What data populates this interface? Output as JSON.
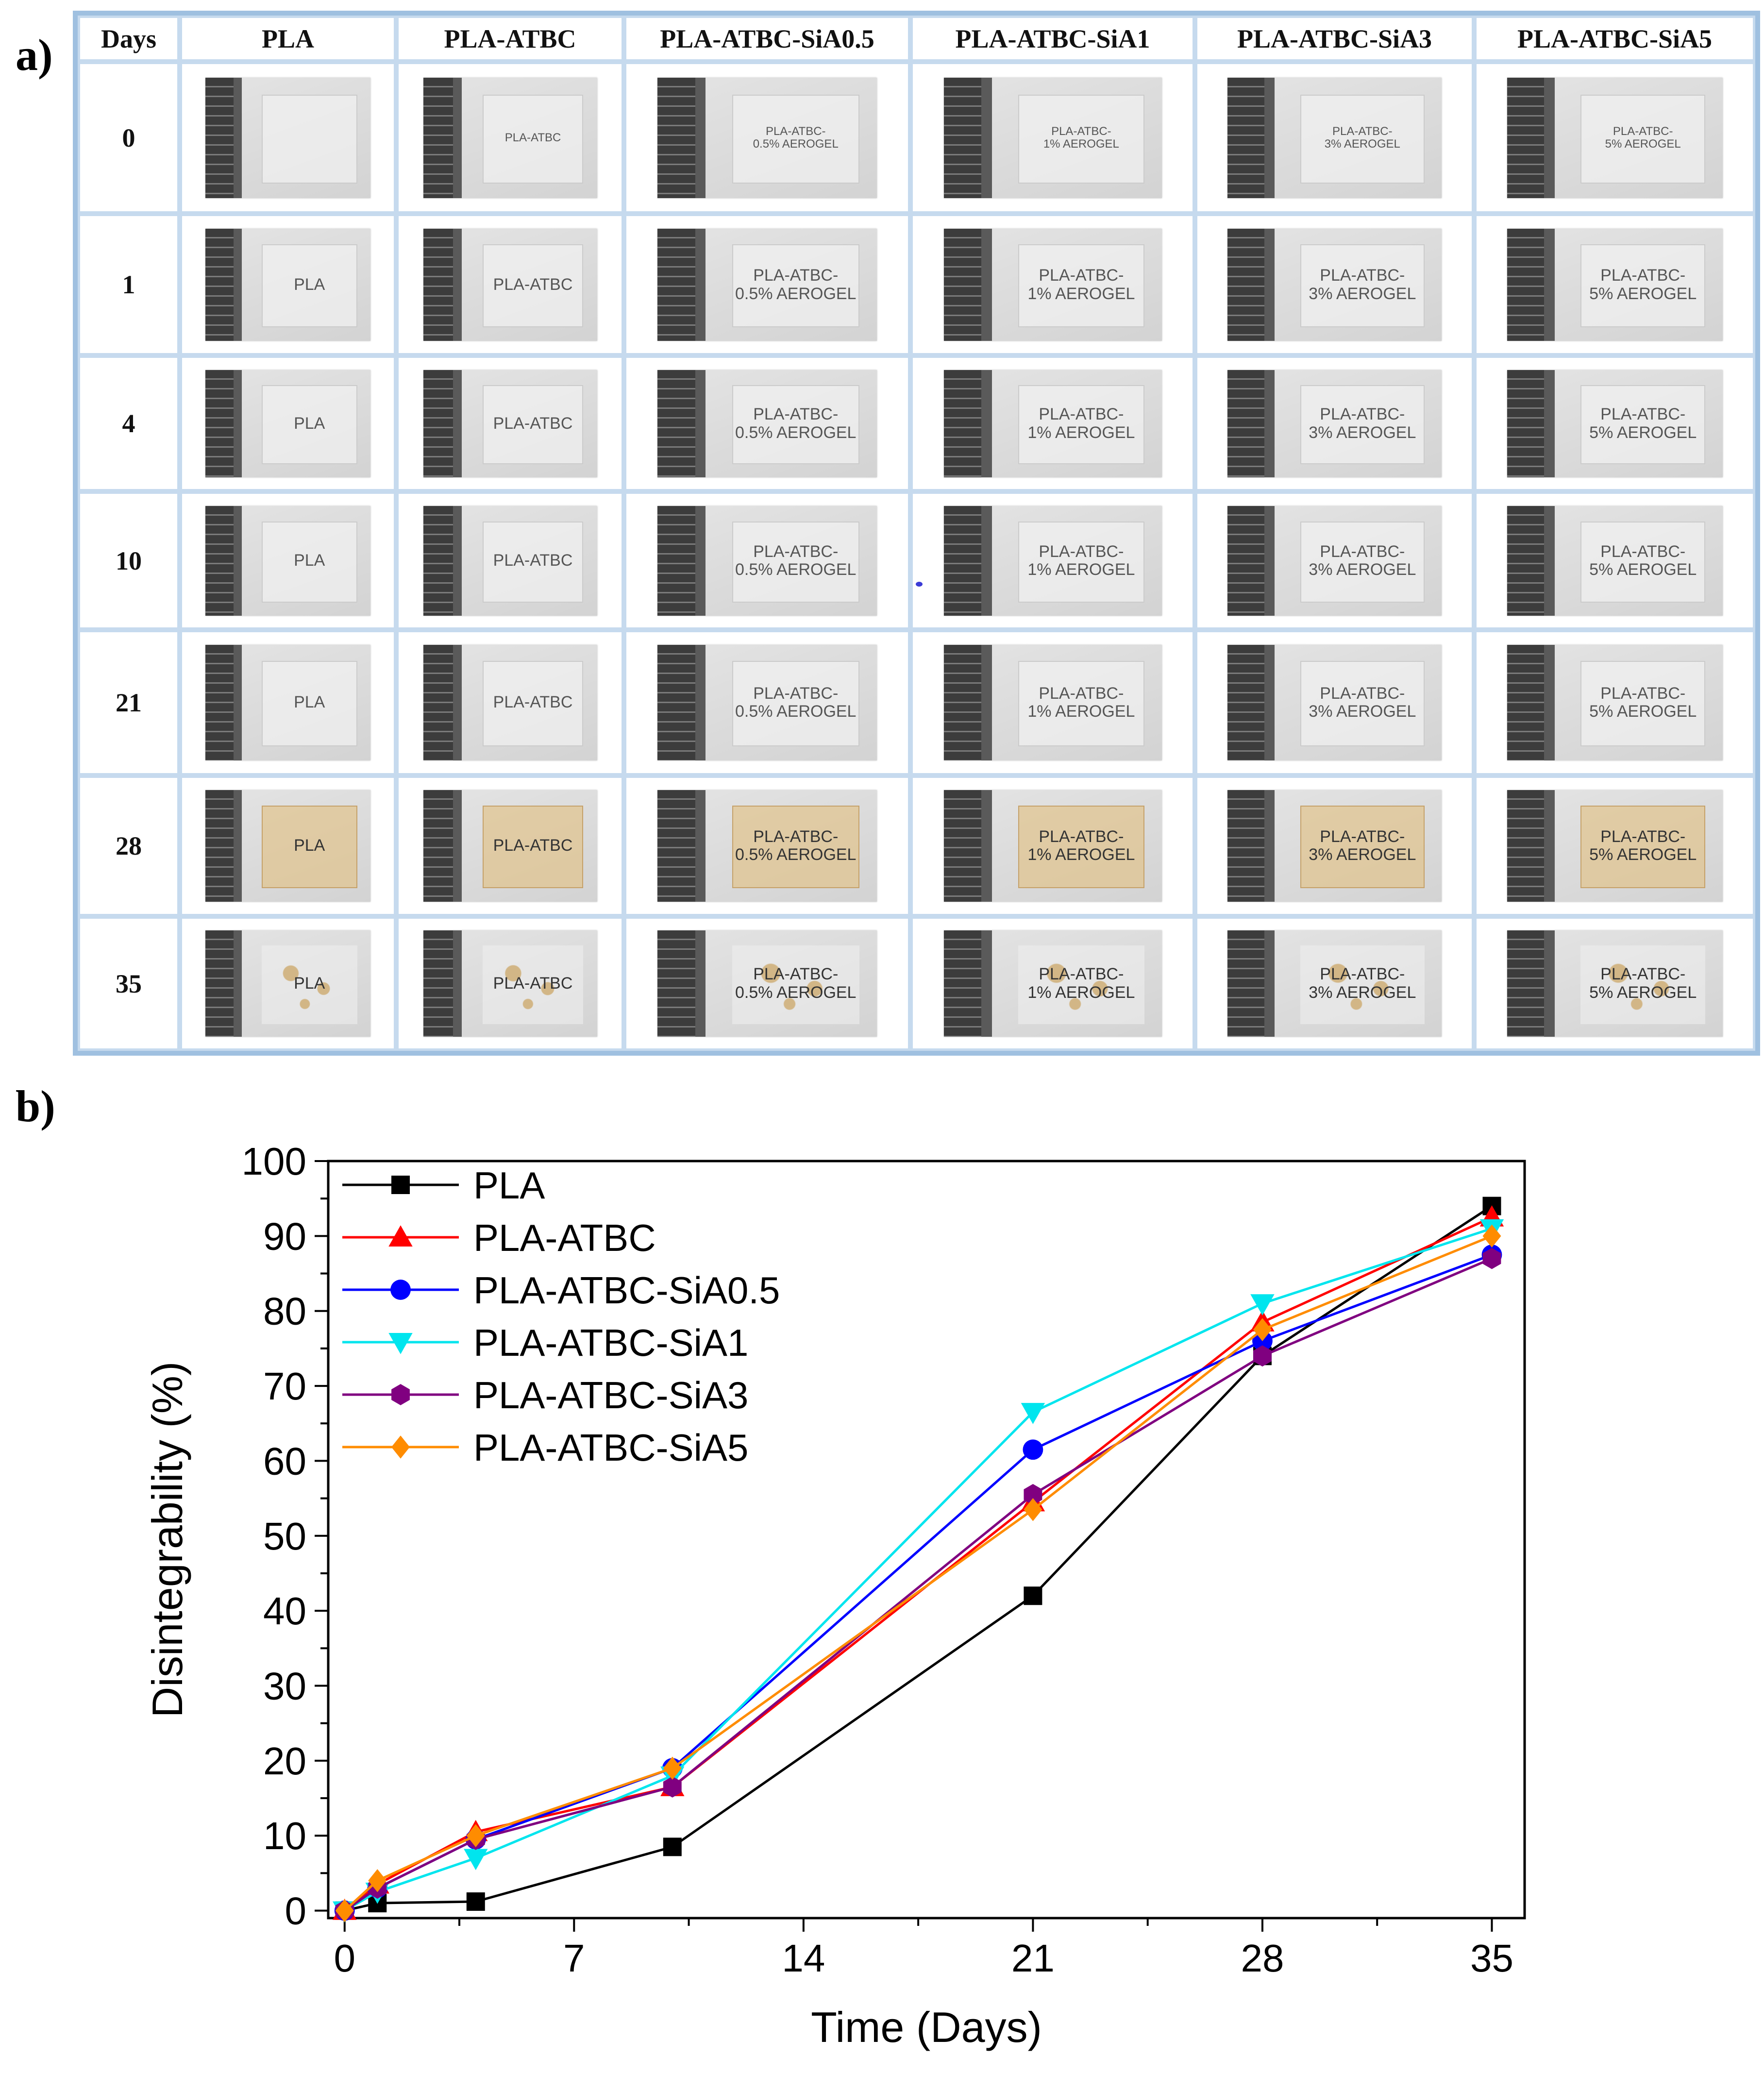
{
  "panel_a": {
    "label": "a)",
    "days_header": "Days",
    "samples": [
      "PLA",
      "PLA-ATBC",
      "PLA-ATBC-SiA0.5",
      "PLA-ATBC-SiA1",
      "PLA-ATBC-SiA3",
      "PLA-ATBC-SiA5"
    ],
    "days": [
      "0",
      "1",
      "4",
      "10",
      "21",
      "28",
      "35"
    ],
    "photo_labels": [
      [
        "",
        "PLA-ATBC",
        "PLA-ATBC-\n0.5% AEROGEL",
        "PLA-ATBC-\n1% AEROGEL",
        "PLA-ATBC-\n3% AEROGEL",
        "PLA-ATBC-\n5% AEROGEL"
      ],
      [
        "PLA",
        "PLA-ATBC",
        "PLA-ATBC-\n0.5% AEROGEL",
        "PLA-ATBC-\n1% AEROGEL",
        "PLA-ATBC-\n3% AEROGEL",
        "PLA-ATBC-\n5% AEROGEL"
      ],
      [
        "PLA",
        "PLA-ATBC",
        "PLA-ATBC-\n0.5% AEROGEL",
        "PLA-ATBC-\n1% AEROGEL",
        "PLA-ATBC-\n3% AEROGEL",
        "PLA-ATBC-\n5% AEROGEL"
      ],
      [
        "PLA",
        "PLA-ATBC",
        "PLA-ATBC-\n0.5% AEROGEL",
        "PLA-ATBC-\n1% AEROGEL",
        "PLA-ATBC-\n3% AEROGEL",
        "PLA-ATBC-\n5% AEROGEL"
      ],
      [
        "PLA",
        "PLA-ATBC",
        "PLA-ATBC-\n0.5% AEROGEL",
        "PLA-ATBC-\n1% AEROGEL",
        "PLA-ATBC-\n3% AEROGEL",
        "PLA-ATBC-\n5% AEROGEL"
      ],
      [
        "PLA",
        "PLA-ATBC",
        "PLA-ATBC-\n0.5% AEROGEL",
        "PLA-ATBC-\n1% AEROGEL",
        "PLA-ATBC-\n3% AEROGEL",
        "PLA-ATBC-\n5% AEROGEL"
      ],
      [
        "PLA",
        "PLA-ATBC",
        "PLA-ATBC-\n0.5% AEROGEL",
        "PLA-ATBC-\n1% AEROGEL",
        "PLA-ATBC-\n3% AEROGEL",
        "PLA-ATBC-\n5% AEROGEL"
      ]
    ],
    "colors": {
      "grid_bg": "#c6daee",
      "grid_border": "#9fc0e0",
      "ruler": "#3c3c3c",
      "degraded_film": "#e1c38c"
    }
  },
  "panel_b": {
    "label": "b)"
  },
  "chart_data": {
    "type": "line",
    "title": "",
    "xlabel": "Time (Days)",
    "ylabel": "Disintegrability (%)",
    "xlim": [
      -0.5,
      36
    ],
    "ylim": [
      -1,
      100
    ],
    "xticks": [
      0,
      7,
      14,
      21,
      28,
      35
    ],
    "yticks": [
      0,
      10,
      20,
      30,
      40,
      50,
      60,
      70,
      80,
      90,
      100
    ],
    "legend_position": "top-left",
    "series": [
      {
        "name": "PLA",
        "color": "#000000",
        "marker": "square",
        "x": [
          0,
          1,
          4,
          10,
          21,
          28,
          35
        ],
        "y": [
          0,
          1,
          1.2,
          8.5,
          42,
          74,
          94
        ]
      },
      {
        "name": "PLA-ATBC",
        "color": "#ff0000",
        "marker": "triangle-up",
        "x": [
          0,
          1,
          4,
          10,
          21,
          28,
          35
        ],
        "y": [
          0,
          3.5,
          10.5,
          16.5,
          54.5,
          78.5,
          92.5
        ]
      },
      {
        "name": "PLA-ATBC-SiA0.5",
        "color": "#0000ff",
        "marker": "circle",
        "x": [
          0,
          1,
          4,
          10,
          21,
          28,
          35
        ],
        "y": [
          0,
          3,
          9.5,
          19,
          61.5,
          76,
          87.5
        ]
      },
      {
        "name": "PLA-ATBC-SiA1",
        "color": "#00e5ee",
        "marker": "triangle-down",
        "x": [
          0,
          1,
          4,
          10,
          21,
          28,
          35
        ],
        "y": [
          0,
          2.5,
          7,
          18,
          66.5,
          81,
          91
        ]
      },
      {
        "name": "PLA-ATBC-SiA3",
        "color": "#800080",
        "marker": "hexagon",
        "x": [
          0,
          1,
          4,
          10,
          21,
          28,
          35
        ],
        "y": [
          0,
          3,
          9.5,
          16.5,
          55.5,
          74,
          87
        ]
      },
      {
        "name": "PLA-ATBC-SiA5",
        "color": "#ff8c00",
        "marker": "diamond",
        "x": [
          0,
          1,
          4,
          10,
          21,
          28,
          35
        ],
        "y": [
          0,
          4,
          10,
          19,
          53.5,
          77.5,
          90
        ]
      }
    ]
  }
}
